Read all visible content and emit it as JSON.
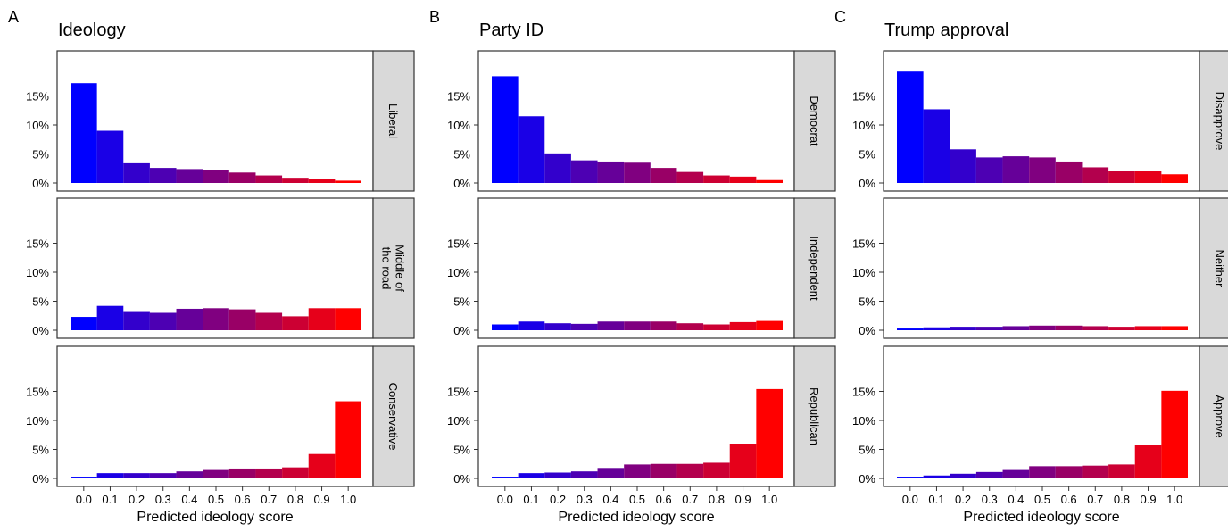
{
  "chart_data": [
    {
      "type": "bar",
      "panel_letter": "A",
      "title": "Ideology",
      "xlabel": "Predicted ideology score",
      "ylabel": "",
      "x_ticks": [
        "0.0",
        "0.1",
        "0.2",
        "0.3",
        "0.4",
        "0.5",
        "0.6",
        "0.7",
        "0.8",
        "0.9",
        "1.0"
      ],
      "y_ticks": [
        "0%",
        "5%",
        "10%",
        "15%"
      ],
      "ylim": [
        0,
        20
      ],
      "color_low": "#0000ff",
      "color_high": "#ff0000",
      "facets": [
        {
          "label": "Liberal",
          "values": [
            17.2,
            9.0,
            3.4,
            2.6,
            2.4,
            2.2,
            1.8,
            1.3,
            0.9,
            0.7,
            0.4
          ]
        },
        {
          "label": "Middle of\nthe road",
          "values": [
            2.3,
            4.2,
            3.3,
            3.0,
            3.7,
            3.8,
            3.6,
            3.0,
            2.4,
            3.8,
            3.8
          ]
        },
        {
          "label": "Conservative",
          "values": [
            0.3,
            0.9,
            0.9,
            0.9,
            1.2,
            1.6,
            1.7,
            1.7,
            1.9,
            4.2,
            13.3
          ]
        }
      ]
    },
    {
      "type": "bar",
      "panel_letter": "B",
      "title": "Party ID",
      "xlabel": "Predicted ideology score",
      "ylabel": "",
      "x_ticks": [
        "0.0",
        "0.1",
        "0.2",
        "0.3",
        "0.4",
        "0.5",
        "0.6",
        "0.7",
        "0.8",
        "0.9",
        "1.0"
      ],
      "y_ticks": [
        "0%",
        "5%",
        "10%",
        "15%"
      ],
      "ylim": [
        0,
        20
      ],
      "color_low": "#0000ff",
      "color_high": "#ff0000",
      "facets": [
        {
          "label": "Democrat",
          "values": [
            18.4,
            11.5,
            5.1,
            3.9,
            3.7,
            3.5,
            2.6,
            1.9,
            1.3,
            1.1,
            0.5
          ]
        },
        {
          "label": "Independent",
          "values": [
            1.0,
            1.5,
            1.2,
            1.1,
            1.5,
            1.5,
            1.5,
            1.2,
            1.0,
            1.4,
            1.6
          ]
        },
        {
          "label": "Republican",
          "values": [
            0.3,
            0.9,
            1.0,
            1.2,
            1.8,
            2.4,
            2.5,
            2.5,
            2.7,
            6.0,
            15.4
          ]
        }
      ]
    },
    {
      "type": "bar",
      "panel_letter": "C",
      "title": "Trump approval",
      "xlabel": "Predicted ideology score",
      "ylabel": "",
      "x_ticks": [
        "0.0",
        "0.1",
        "0.2",
        "0.3",
        "0.4",
        "0.5",
        "0.6",
        "0.7",
        "0.8",
        "0.9",
        "1.0"
      ],
      "y_ticks": [
        "0%",
        "5%",
        "10%",
        "15%"
      ],
      "ylim": [
        0,
        20
      ],
      "color_low": "#0000ff",
      "color_high": "#ff0000",
      "facets": [
        {
          "label": "Disapprove",
          "values": [
            19.2,
            12.7,
            5.8,
            4.4,
            4.6,
            4.4,
            3.7,
            2.7,
            2.0,
            2.0,
            1.5
          ]
        },
        {
          "label": "Neither",
          "values": [
            0.3,
            0.5,
            0.6,
            0.6,
            0.7,
            0.8,
            0.8,
            0.7,
            0.6,
            0.7,
            0.7
          ]
        },
        {
          "label": "Approve",
          "values": [
            0.3,
            0.5,
            0.8,
            1.1,
            1.6,
            2.1,
            2.1,
            2.2,
            2.4,
            5.7,
            15.1
          ]
        }
      ]
    }
  ]
}
